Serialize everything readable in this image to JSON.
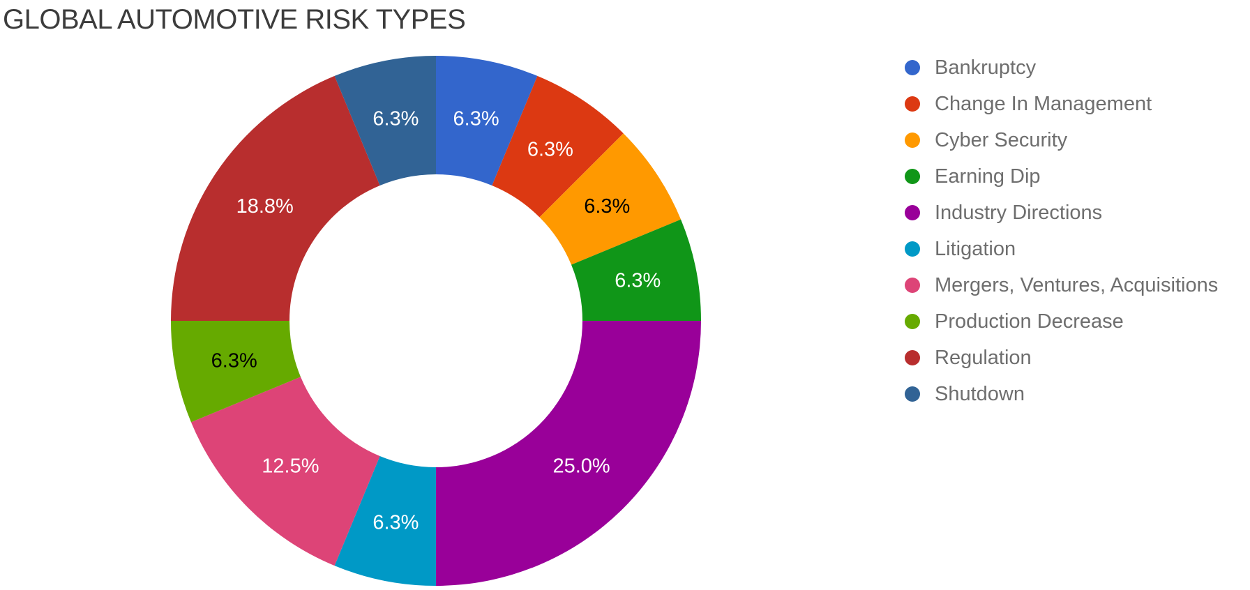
{
  "title": "GLOBAL AUTOMOTIVE RISK TYPES",
  "chart_data": {
    "type": "pie",
    "subtype": "donut",
    "title": "GLOBAL AUTOMOTIVE RISK TYPES",
    "unit": "percent",
    "legend_position": "right",
    "labels_on_slices": true,
    "start_angle_deg": 0,
    "direction": "clockwise",
    "total": 100,
    "slices": [
      {
        "label": "Bankruptcy",
        "value": 6.25,
        "display": "6.3%",
        "color": "#3366CC",
        "label_color": "#ffffff"
      },
      {
        "label": "Change In Management",
        "value": 6.25,
        "display": "6.3%",
        "color": "#DC3912",
        "label_color": "#ffffff"
      },
      {
        "label": "Cyber Security",
        "value": 6.25,
        "display": "6.3%",
        "color": "#FF9900",
        "label_color": "#000000"
      },
      {
        "label": "Earning Dip",
        "value": 6.25,
        "display": "6.3%",
        "color": "#109618",
        "label_color": "#ffffff"
      },
      {
        "label": "Industry Directions",
        "value": 25.0,
        "display": "25.0%",
        "color": "#990099",
        "label_color": "#ffffff"
      },
      {
        "label": "Litigation",
        "value": 6.25,
        "display": "6.3%",
        "color": "#0099C6",
        "label_color": "#ffffff"
      },
      {
        "label": "Mergers, Ventures, Acquisitions",
        "value": 12.5,
        "display": "12.5%",
        "color": "#DD4477",
        "label_color": "#ffffff"
      },
      {
        "label": "Production Decrease",
        "value": 6.25,
        "display": "6.3%",
        "color": "#66AA00",
        "label_color": "#000000"
      },
      {
        "label": "Regulation",
        "value": 18.75,
        "display": "18.8%",
        "color": "#B82E2E",
        "label_color": "#ffffff"
      },
      {
        "label": "Shutdown",
        "value": 6.25,
        "display": "6.3%",
        "color": "#316395",
        "label_color": "#ffffff"
      }
    ]
  }
}
